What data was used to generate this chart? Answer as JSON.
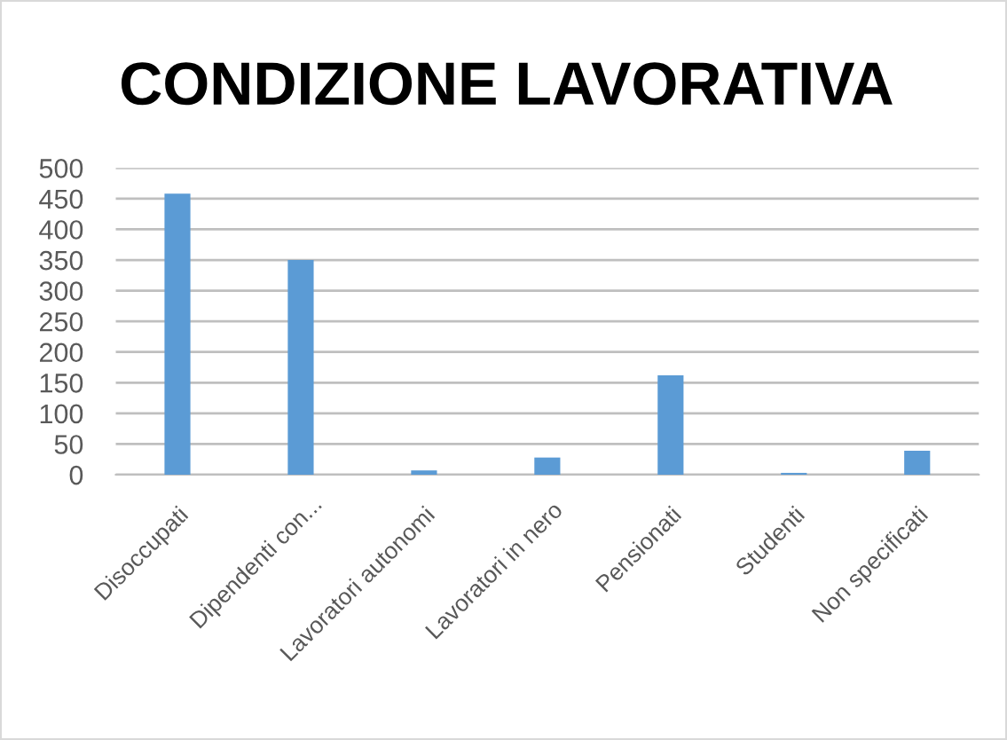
{
  "chart_data": {
    "type": "bar",
    "title": "CONDIZIONE LAVORATIVA",
    "categories": [
      "Disoccupati",
      "Dipendenti con...",
      "Lavoratori autonomi",
      "Lavoratori in nero",
      "Pensionati",
      "Studenti",
      "Non specificati"
    ],
    "values": [
      458,
      350,
      7,
      28,
      162,
      3,
      39
    ],
    "color": "#5b9bd5",
    "ylim": [
      0,
      500
    ],
    "yticks": [
      0,
      50,
      100,
      150,
      200,
      250,
      300,
      350,
      400,
      450,
      500
    ],
    "grid": "y",
    "legend": false
  }
}
